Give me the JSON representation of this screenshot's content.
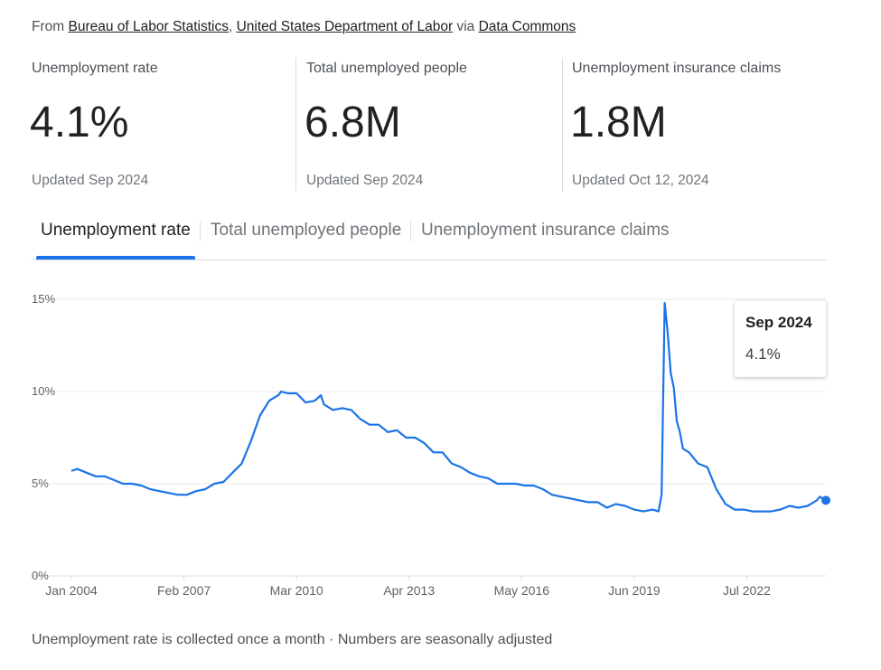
{
  "source": {
    "prefix": "From",
    "links": [
      "Bureau of Labor Statistics",
      "United States Department of Labor",
      "Data Commons"
    ],
    "sep": ",",
    "via": "via"
  },
  "cards": [
    {
      "label": "Unemployment rate",
      "value": "4.1%",
      "updated": "Updated Sep 2024"
    },
    {
      "label": "Total unemployed people",
      "value": "6.8M",
      "updated": "Updated Sep 2024"
    },
    {
      "label": "Unemployment insurance claims",
      "value": "1.8M",
      "updated": "Updated Oct 12, 2024"
    }
  ],
  "tabs": [
    {
      "label": "Unemployment rate",
      "active": true
    },
    {
      "label": "Total unemployed people",
      "active": false
    },
    {
      "label": "Unemployment insurance claims",
      "active": false
    }
  ],
  "tooltip": {
    "title": "Sep 2024",
    "value": "4.1%"
  },
  "footnote": "Unemployment rate is collected once a month · Numbers are seasonally adjusted",
  "colors": {
    "line": "#1a73e8",
    "grid": "#e8eaed",
    "axis_text": "#5f6368",
    "baseline": "#dadce0"
  },
  "chart_data": {
    "type": "line",
    "title": "",
    "xlabel": "",
    "ylabel": "",
    "ylim": [
      0,
      15
    ],
    "yticks": [
      "0%",
      "5%",
      "10%",
      "15%"
    ],
    "xticks": [
      "Jan 2004",
      "Feb 2007",
      "Mar 2010",
      "Apr 2013",
      "May 2016",
      "Jun 2019",
      "Jul 2022"
    ],
    "grid": true,
    "series": [
      {
        "points": [
          [
            "2004-01",
            5.7
          ],
          [
            "2004-03",
            5.8
          ],
          [
            "2004-06",
            5.6
          ],
          [
            "2004-09",
            5.4
          ],
          [
            "2004-12",
            5.4
          ],
          [
            "2005-03",
            5.2
          ],
          [
            "2005-06",
            5.0
          ],
          [
            "2005-09",
            5.0
          ],
          [
            "2005-12",
            4.9
          ],
          [
            "2006-03",
            4.7
          ],
          [
            "2006-06",
            4.6
          ],
          [
            "2006-09",
            4.5
          ],
          [
            "2006-12",
            4.4
          ],
          [
            "2007-03",
            4.4
          ],
          [
            "2007-06",
            4.6
          ],
          [
            "2007-09",
            4.7
          ],
          [
            "2007-12",
            5.0
          ],
          [
            "2008-03",
            5.1
          ],
          [
            "2008-06",
            5.6
          ],
          [
            "2008-09",
            6.1
          ],
          [
            "2008-12",
            7.3
          ],
          [
            "2009-03",
            8.7
          ],
          [
            "2009-06",
            9.5
          ],
          [
            "2009-09",
            9.8
          ],
          [
            "2009-10",
            10.0
          ],
          [
            "2009-12",
            9.9
          ],
          [
            "2010-03",
            9.9
          ],
          [
            "2010-06",
            9.4
          ],
          [
            "2010-09",
            9.5
          ],
          [
            "2010-11",
            9.8
          ],
          [
            "2010-12",
            9.3
          ],
          [
            "2011-03",
            9.0
          ],
          [
            "2011-06",
            9.1
          ],
          [
            "2011-09",
            9.0
          ],
          [
            "2011-12",
            8.5
          ],
          [
            "2012-03",
            8.2
          ],
          [
            "2012-06",
            8.2
          ],
          [
            "2012-09",
            7.8
          ],
          [
            "2012-12",
            7.9
          ],
          [
            "2013-03",
            7.5
          ],
          [
            "2013-06",
            7.5
          ],
          [
            "2013-09",
            7.2
          ],
          [
            "2013-12",
            6.7
          ],
          [
            "2014-03",
            6.7
          ],
          [
            "2014-06",
            6.1
          ],
          [
            "2014-09",
            5.9
          ],
          [
            "2014-12",
            5.6
          ],
          [
            "2015-03",
            5.4
          ],
          [
            "2015-06",
            5.3
          ],
          [
            "2015-09",
            5.0
          ],
          [
            "2015-12",
            5.0
          ],
          [
            "2016-03",
            5.0
          ],
          [
            "2016-06",
            4.9
          ],
          [
            "2016-09",
            4.9
          ],
          [
            "2016-12",
            4.7
          ],
          [
            "2017-03",
            4.4
          ],
          [
            "2017-06",
            4.3
          ],
          [
            "2017-09",
            4.2
          ],
          [
            "2017-12",
            4.1
          ],
          [
            "2018-03",
            4.0
          ],
          [
            "2018-06",
            4.0
          ],
          [
            "2018-09",
            3.7
          ],
          [
            "2018-12",
            3.9
          ],
          [
            "2019-03",
            3.8
          ],
          [
            "2019-06",
            3.6
          ],
          [
            "2019-09",
            3.5
          ],
          [
            "2019-12",
            3.6
          ],
          [
            "2020-02",
            3.5
          ],
          [
            "2020-03",
            4.4
          ],
          [
            "2020-04",
            14.8
          ],
          [
            "2020-05",
            13.2
          ],
          [
            "2020-06",
            11.0
          ],
          [
            "2020-07",
            10.2
          ],
          [
            "2020-08",
            8.4
          ],
          [
            "2020-09",
            7.8
          ],
          [
            "2020-10",
            6.9
          ],
          [
            "2020-12",
            6.7
          ],
          [
            "2021-03",
            6.1
          ],
          [
            "2021-06",
            5.9
          ],
          [
            "2021-09",
            4.7
          ],
          [
            "2021-12",
            3.9
          ],
          [
            "2022-03",
            3.6
          ],
          [
            "2022-06",
            3.6
          ],
          [
            "2022-09",
            3.5
          ],
          [
            "2022-12",
            3.5
          ],
          [
            "2023-03",
            3.5
          ],
          [
            "2023-06",
            3.6
          ],
          [
            "2023-09",
            3.8
          ],
          [
            "2023-12",
            3.7
          ],
          [
            "2024-03",
            3.8
          ],
          [
            "2024-06",
            4.1
          ],
          [
            "2024-07",
            4.3
          ],
          [
            "2024-09",
            4.1
          ]
        ]
      }
    ]
  }
}
